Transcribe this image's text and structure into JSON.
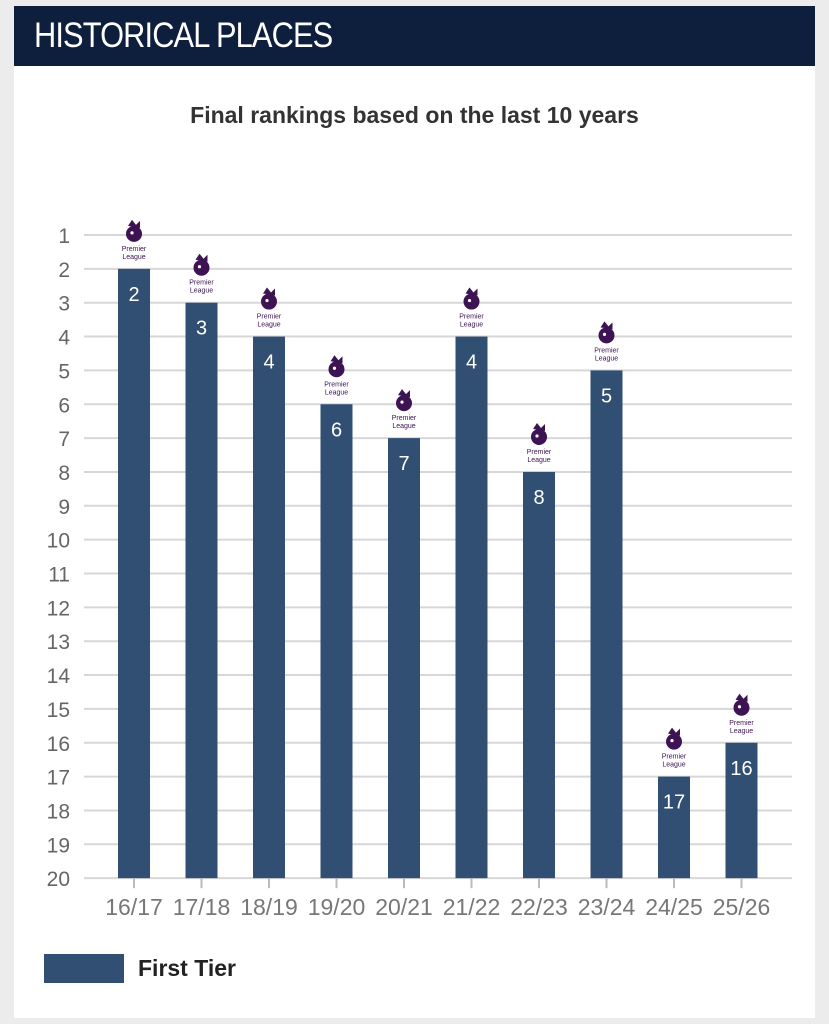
{
  "header": {
    "title": "HISTORICAL PLACES"
  },
  "chart_data": {
    "type": "bar",
    "title": "Final rankings based on the last 10 years",
    "categories": [
      "16/17",
      "17/18",
      "18/19",
      "19/20",
      "20/21",
      "21/22",
      "22/23",
      "23/24",
      "24/25",
      "25/26"
    ],
    "series": [
      {
        "name": "First Tier",
        "values": [
          2,
          3,
          4,
          6,
          7,
          4,
          8,
          5,
          17,
          16
        ]
      }
    ],
    "y_axis": {
      "ticks": [
        1,
        2,
        3,
        4,
        5,
        6,
        7,
        8,
        9,
        10,
        11,
        12,
        13,
        14,
        15,
        16,
        17,
        18,
        19,
        20
      ],
      "inverted": true,
      "ylim": [
        1,
        20
      ]
    },
    "bar_icon": {
      "name": "premier-league-logo",
      "label_line1": "Premier",
      "label_line2": "League"
    },
    "grid": true,
    "legend_position": "bottom-left"
  },
  "legend": {
    "label": "First Tier"
  },
  "colors": {
    "header_bg": "#0e1e3d",
    "bar": "#314f72",
    "logo": "#3d1353",
    "grid": "#d7d7d7"
  }
}
